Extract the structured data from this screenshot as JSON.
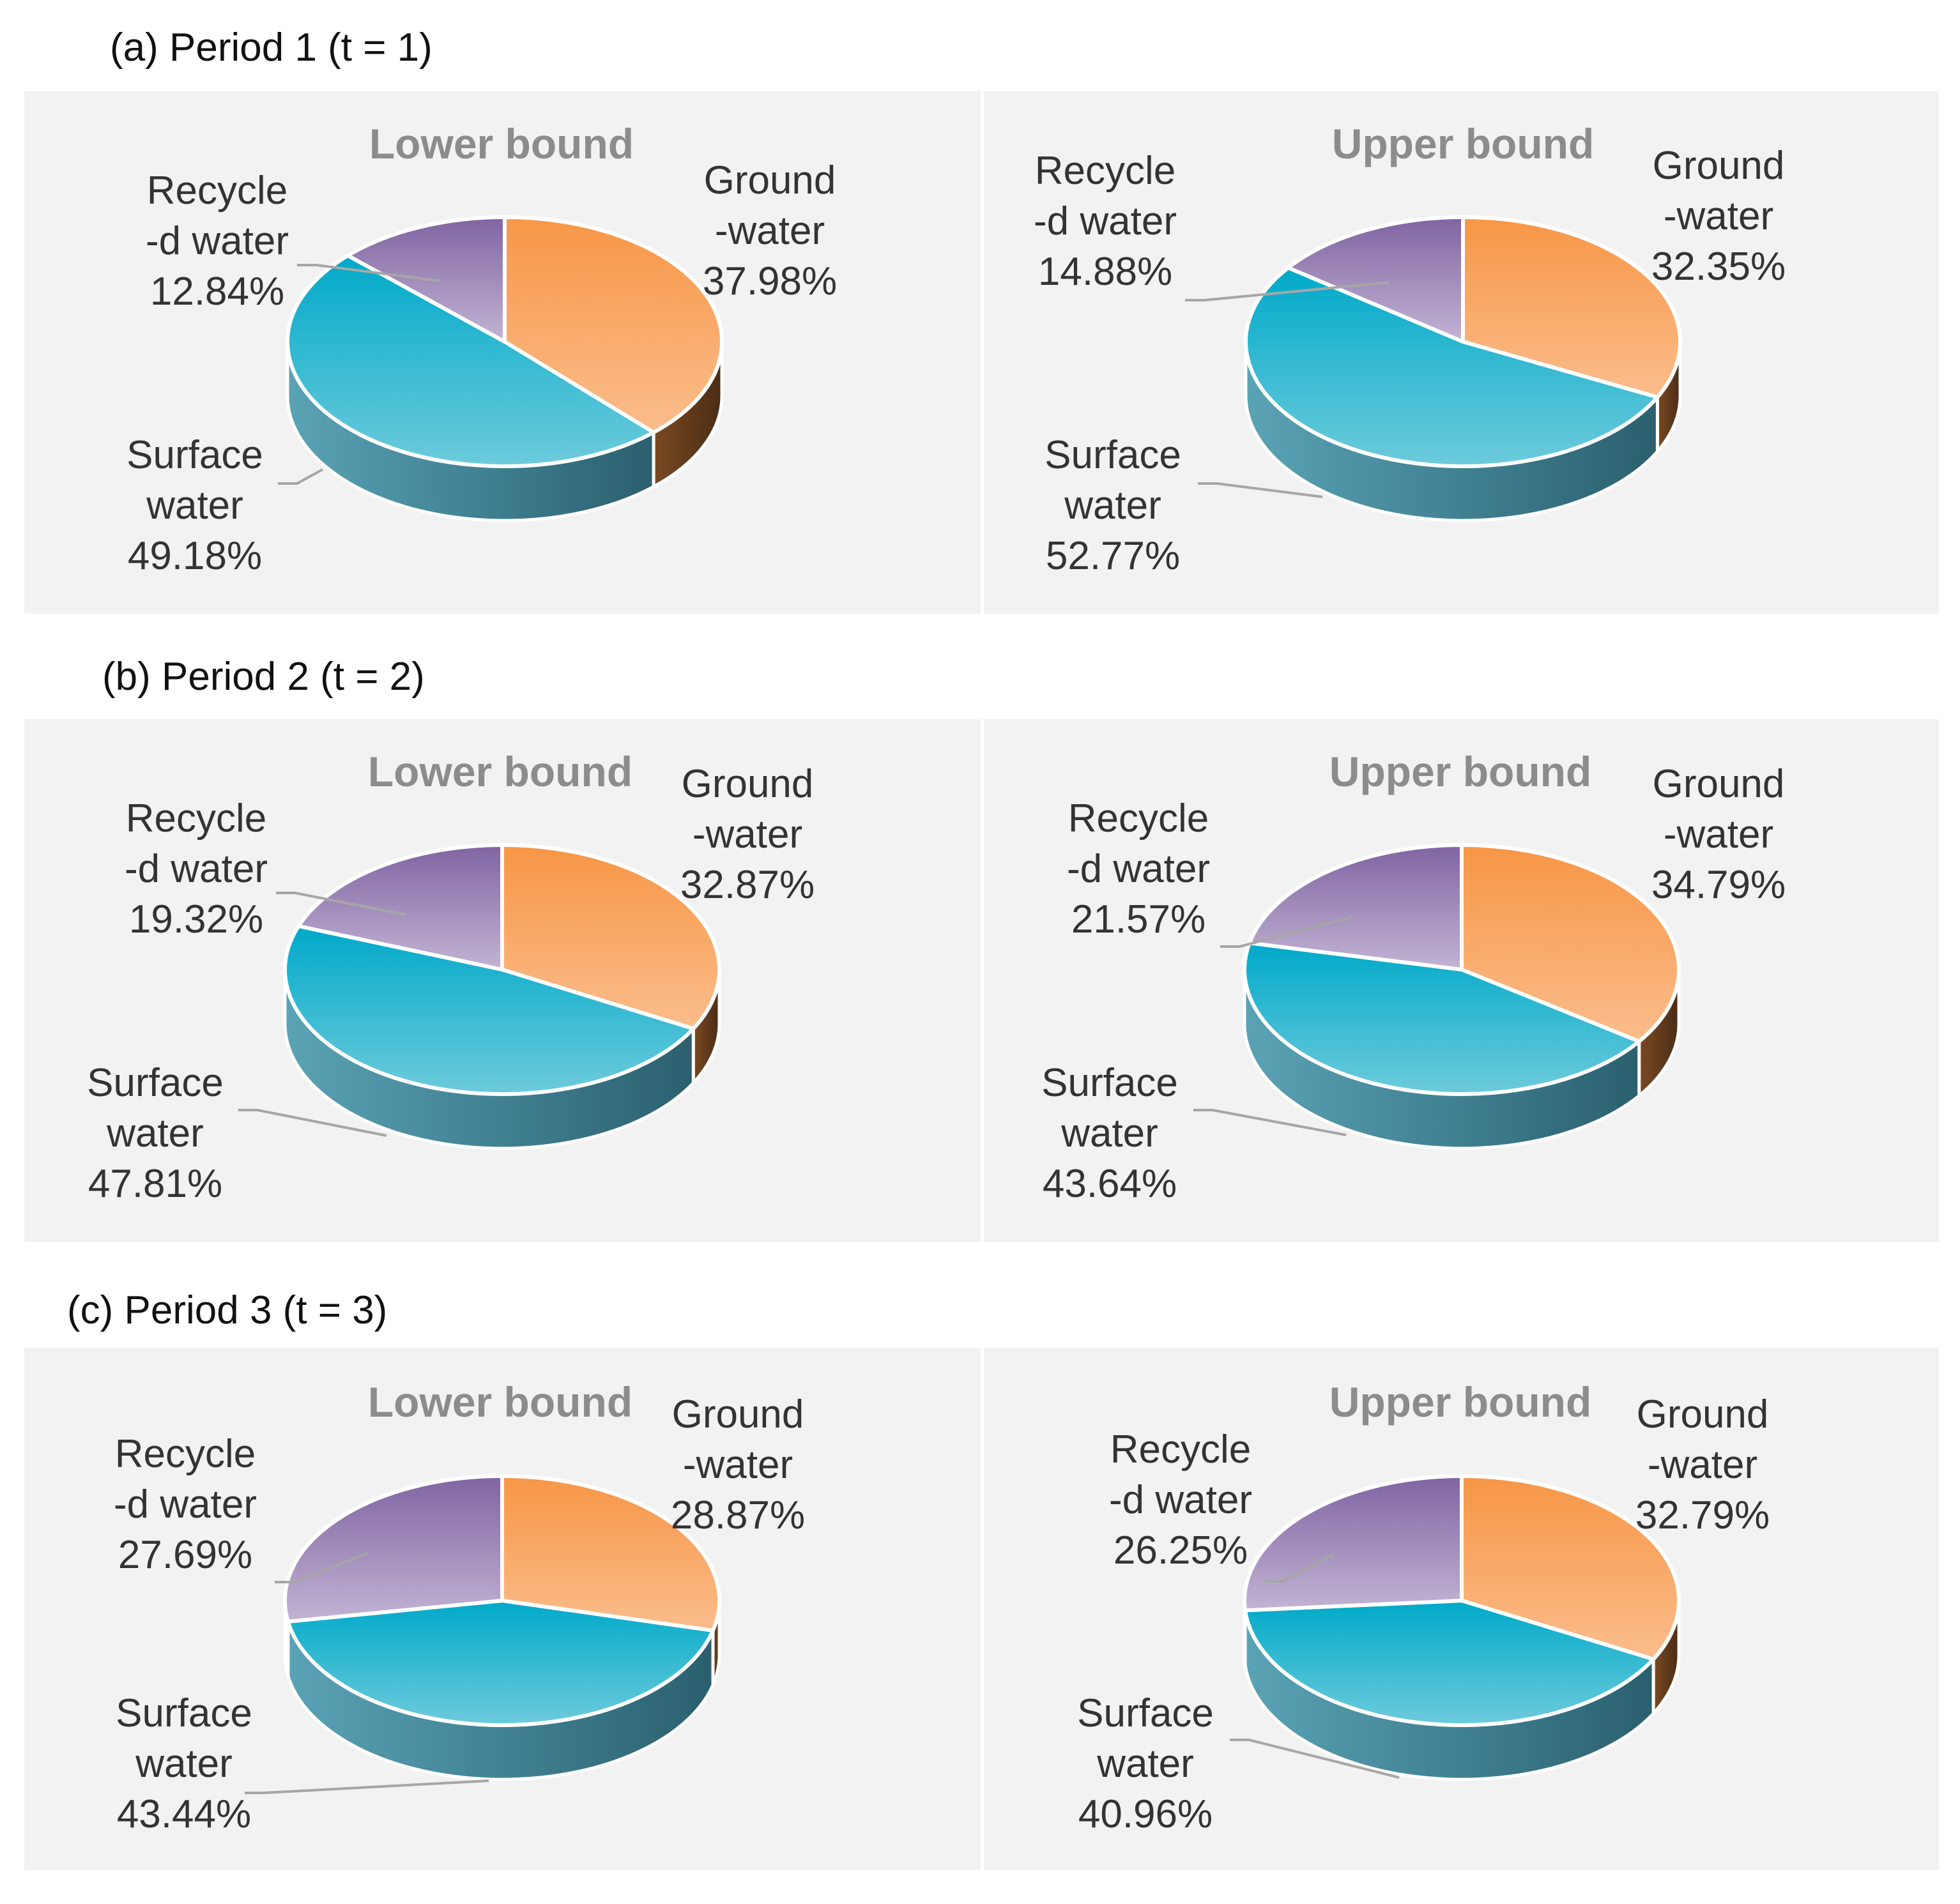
{
  "colors": {
    "ground_top": "#f79646",
    "ground_top_light": "#fbbd8c",
    "ground_side": "#b86a2c",
    "surface_top": "#00a9c9",
    "surface_top_light": "#6dcbdc",
    "surface_side": "#2b5f6e",
    "surface_side_light": "#5aa3b5",
    "recycle_top": "#8064a2",
    "recycle_top_light": "#c2b4d4",
    "panel_bg": "#f2f2f2",
    "leader": "#a6a6a6"
  },
  "chart_data": [
    {
      "type": "pie",
      "period_title": "(a) Period 1 (t = 1)",
      "title": "Lower bound",
      "slices": [
        {
          "name": "Ground",
          "name2": "-water",
          "value": 37.98,
          "label": "37.98%"
        },
        {
          "name": "Surface",
          "name2": "water",
          "value": 49.18,
          "label": "49.18%"
        },
        {
          "name": "Recycle",
          "name2": "-d water",
          "value": 12.84,
          "label": "12.84%"
        }
      ]
    },
    {
      "type": "pie",
      "title": "Upper bound",
      "slices": [
        {
          "name": "Ground",
          "name2": "-water",
          "value": 32.35,
          "label": "32.35%"
        },
        {
          "name": "Surface",
          "name2": "water",
          "value": 52.77,
          "label": "52.77%"
        },
        {
          "name": "Recycle",
          "name2": "-d water",
          "value": 14.88,
          "label": "14.88%"
        }
      ]
    },
    {
      "type": "pie",
      "period_title": "(b) Period 2 (t = 2)",
      "title": "Lower bound",
      "slices": [
        {
          "name": "Ground",
          "name2": "-water",
          "value": 32.87,
          "label": "32.87%"
        },
        {
          "name": "Surface",
          "name2": "water",
          "value": 47.81,
          "label": "47.81%"
        },
        {
          "name": "Recycle",
          "name2": "-d water",
          "value": 19.32,
          "label": "19.32%"
        }
      ]
    },
    {
      "type": "pie",
      "title": "Upper bound",
      "slices": [
        {
          "name": "Ground",
          "name2": "-water",
          "value": 34.79,
          "label": "34.79%"
        },
        {
          "name": "Surface",
          "name2": "water",
          "value": 43.64,
          "label": "43.64%"
        },
        {
          "name": "Recycle",
          "name2": "-d water",
          "value": 21.57,
          "label": "21.57%"
        }
      ]
    },
    {
      "type": "pie",
      "period_title": "(c) Period 3 (t = 3)",
      "title": "Lower bound",
      "slices": [
        {
          "name": "Ground",
          "name2": "-water",
          "value": 28.87,
          "label": "28.87%"
        },
        {
          "name": "Surface",
          "name2": "water",
          "value": 43.44,
          "label": "43.44%"
        },
        {
          "name": "Recycle",
          "name2": "-d water",
          "value": 27.69,
          "label": "27.69%"
        }
      ]
    },
    {
      "type": "pie",
      "title": "Upper bound",
      "slices": [
        {
          "name": "Ground",
          "name2": "-water",
          "value": 32.79,
          "label": "32.79%"
        },
        {
          "name": "Surface",
          "name2": "water",
          "value": 40.96,
          "label": "40.96%"
        },
        {
          "name": "Recycle",
          "name2": "-d water",
          "value": 26.25,
          "label": "26.25%"
        }
      ]
    }
  ]
}
